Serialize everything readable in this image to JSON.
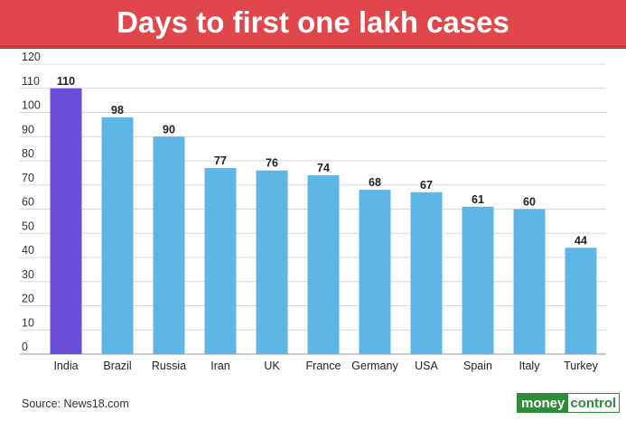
{
  "header": {
    "title": "Days to first one lakh cases"
  },
  "footer": {
    "source": "Source: News18.com"
  },
  "logo": {
    "part1": "money",
    "part2": "control"
  },
  "colors": {
    "highlight_bar": "#6b4fdb",
    "bar": "#5eb6e6",
    "title_background": "#e0474c",
    "grid": "#d9d9d9",
    "logo_green": "#2f8a3c"
  },
  "chart_data": {
    "type": "bar",
    "categories": [
      "India",
      "Brazil",
      "Russia",
      "Iran",
      "UK",
      "France",
      "Germany",
      "USA",
      "Spain",
      "Italy",
      "Turkey"
    ],
    "values": [
      110,
      98,
      90,
      77,
      76,
      74,
      68,
      67,
      61,
      60,
      44
    ],
    "highlight": "India",
    "title": "Days to first one lakh cases",
    "xlabel": "",
    "ylabel": "",
    "ylim": [
      0,
      120
    ],
    "yticks": [
      0,
      10,
      20,
      30,
      40,
      50,
      60,
      70,
      80,
      90,
      100,
      110,
      120
    ],
    "grid": true,
    "data_labels": true,
    "legend": "none"
  }
}
